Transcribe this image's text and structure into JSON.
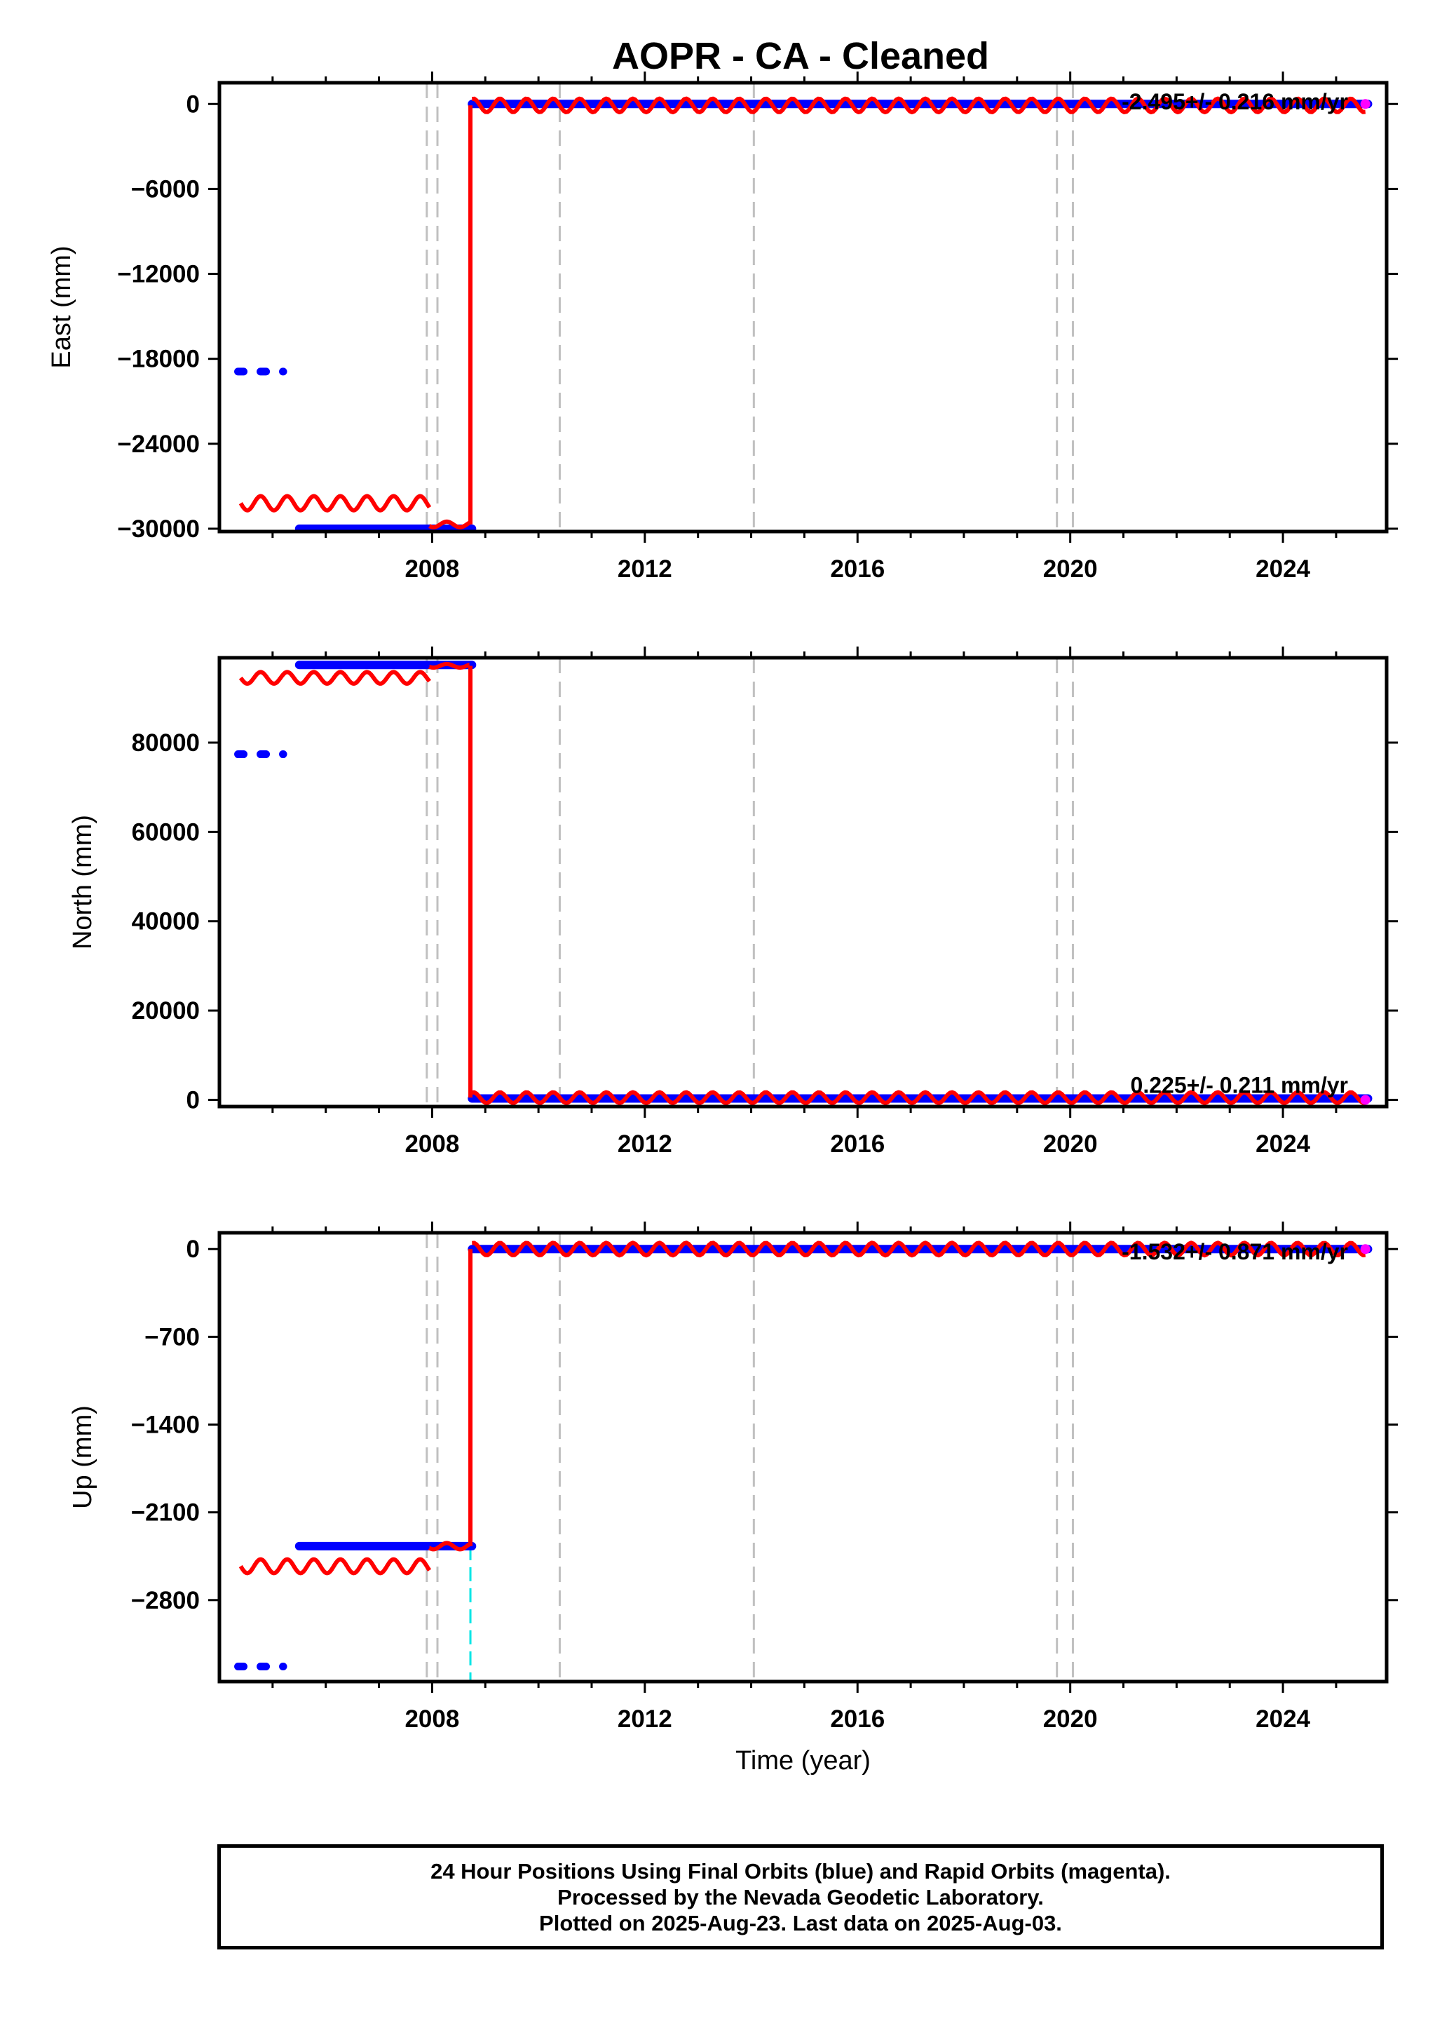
{
  "title": "AOPR  - CA - Cleaned",
  "colors": {
    "final_orbits": "#0000ff",
    "rapid_orbits": "#ff00ff",
    "model": "#ff0000",
    "equipment_change": "#c0c0c0",
    "earthquake": "#00e5e5"
  },
  "chart_data": [
    {
      "type": "scatter",
      "panel": "east",
      "ylabel": "East (mm)",
      "xlabel": "",
      "xlim": [
        2004.0,
        2025.95
      ],
      "ylim": [
        -30200,
        1500
      ],
      "x_ticks": [
        2008,
        2012,
        2016,
        2020,
        2024
      ],
      "y_ticks": [
        0,
        -6000,
        -12000,
        -18000,
        -24000,
        -30000
      ],
      "y_tick_labels": [
        "0",
        "−6000",
        "−12000",
        "−18000",
        "−24000",
        "−30000"
      ],
      "rate_label": "-2.495+/- 0.216 mm/yr",
      "segments": [
        {
          "x": [
            2004.35,
            2005.2
          ],
          "y": -18900,
          "series": "final"
        },
        {
          "x": [
            2005.5,
            2008.75
          ],
          "y": -30000,
          "series": "final"
        },
        {
          "x": [
            2008.75,
            2025.6
          ],
          "y": 0,
          "series": "final"
        }
      ],
      "model_pieces": [
        {
          "x": [
            2004.4,
            2007.95
          ],
          "y": -28200,
          "amp": 500
        },
        {
          "x": [
            2007.95,
            2008.7
          ],
          "y": -29700,
          "amp": 200
        },
        {
          "x": [
            2008.75,
            2025.55
          ],
          "y": -100,
          "amp": 480
        }
      ],
      "step_x": 2008.72,
      "rapid_tail": {
        "x": 2025.55,
        "y": 0
      },
      "equipment_change_years": [
        2007.9,
        2008.1,
        2010.4,
        2014.05,
        2019.75,
        2020.05
      ],
      "earthquake_years": []
    },
    {
      "type": "scatter",
      "panel": "north",
      "ylabel": "North (mm)",
      "xlabel": "",
      "xlim": [
        2004.0,
        2025.95
      ],
      "ylim": [
        -1500,
        99000
      ],
      "x_ticks": [
        2008,
        2012,
        2016,
        2020,
        2024
      ],
      "y_ticks": [
        0,
        20000,
        40000,
        60000,
        80000
      ],
      "y_tick_labels": [
        "0",
        "20000",
        "40000",
        "60000",
        "80000"
      ],
      "rate_label": "0.225+/- 0.211 mm/yr",
      "segments": [
        {
          "x": [
            2004.35,
            2005.2
          ],
          "y": 77400,
          "series": "final"
        },
        {
          "x": [
            2005.5,
            2008.75
          ],
          "y": 97400,
          "series": "final"
        },
        {
          "x": [
            2008.75,
            2025.6
          ],
          "y": 300,
          "series": "final"
        }
      ],
      "model_pieces": [
        {
          "x": [
            2004.4,
            2007.95
          ],
          "y": 94500,
          "amp": 1300
        },
        {
          "x": [
            2007.95,
            2008.7
          ],
          "y": 97200,
          "amp": 400
        },
        {
          "x": [
            2008.75,
            2025.55
          ],
          "y": 500,
          "amp": 1200
        }
      ],
      "step_x": 2008.72,
      "rapid_tail": {
        "x": 2025.55,
        "y": 0
      },
      "equipment_change_years": [
        2007.9,
        2008.1,
        2010.4,
        2014.05,
        2019.75,
        2020.05
      ],
      "earthquake_years": []
    },
    {
      "type": "scatter",
      "panel": "up",
      "ylabel": "Up (mm)",
      "xlabel": "Time (year)",
      "xlim": [
        2004.0,
        2025.95
      ],
      "ylim": [
        -3450,
        130
      ],
      "x_ticks": [
        2008,
        2012,
        2016,
        2020,
        2024
      ],
      "y_ticks": [
        0,
        -700,
        -1400,
        -2100,
        -2800
      ],
      "y_tick_labels": [
        "0",
        "−700",
        "−1400",
        "−2100",
        "−2800"
      ],
      "rate_label": "-1.532+/- 0.871 mm/yr",
      "segments": [
        {
          "x": [
            2004.35,
            2005.2
          ],
          "y": -3330,
          "series": "final"
        },
        {
          "x": [
            2005.5,
            2008.75
          ],
          "y": -2370,
          "series": "final"
        },
        {
          "x": [
            2008.75,
            2025.6
          ],
          "y": 0,
          "series": "final"
        }
      ],
      "model_pieces": [
        {
          "x": [
            2004.4,
            2007.95
          ],
          "y": -2530,
          "amp": 55
        },
        {
          "x": [
            2007.95,
            2008.7
          ],
          "y": -2370,
          "amp": 25
        },
        {
          "x": [
            2008.75,
            2025.55
          ],
          "y": 0,
          "amp": 50
        }
      ],
      "step_x": 2008.72,
      "rapid_tail": {
        "x": 2025.55,
        "y": 0
      },
      "equipment_change_years": [
        2007.9,
        2008.1,
        2010.4,
        2014.05,
        2019.75,
        2020.05
      ],
      "earthquake_years": [
        2008.72
      ]
    }
  ],
  "footer": {
    "line1": "24 Hour Positions Using Final Orbits (blue) and Rapid Orbits (magenta).",
    "line2": "Processed by the Nevada Geodetic Laboratory.",
    "line3": "Plotted on 2025-Aug-23. Last data on 2025-Aug-03."
  }
}
